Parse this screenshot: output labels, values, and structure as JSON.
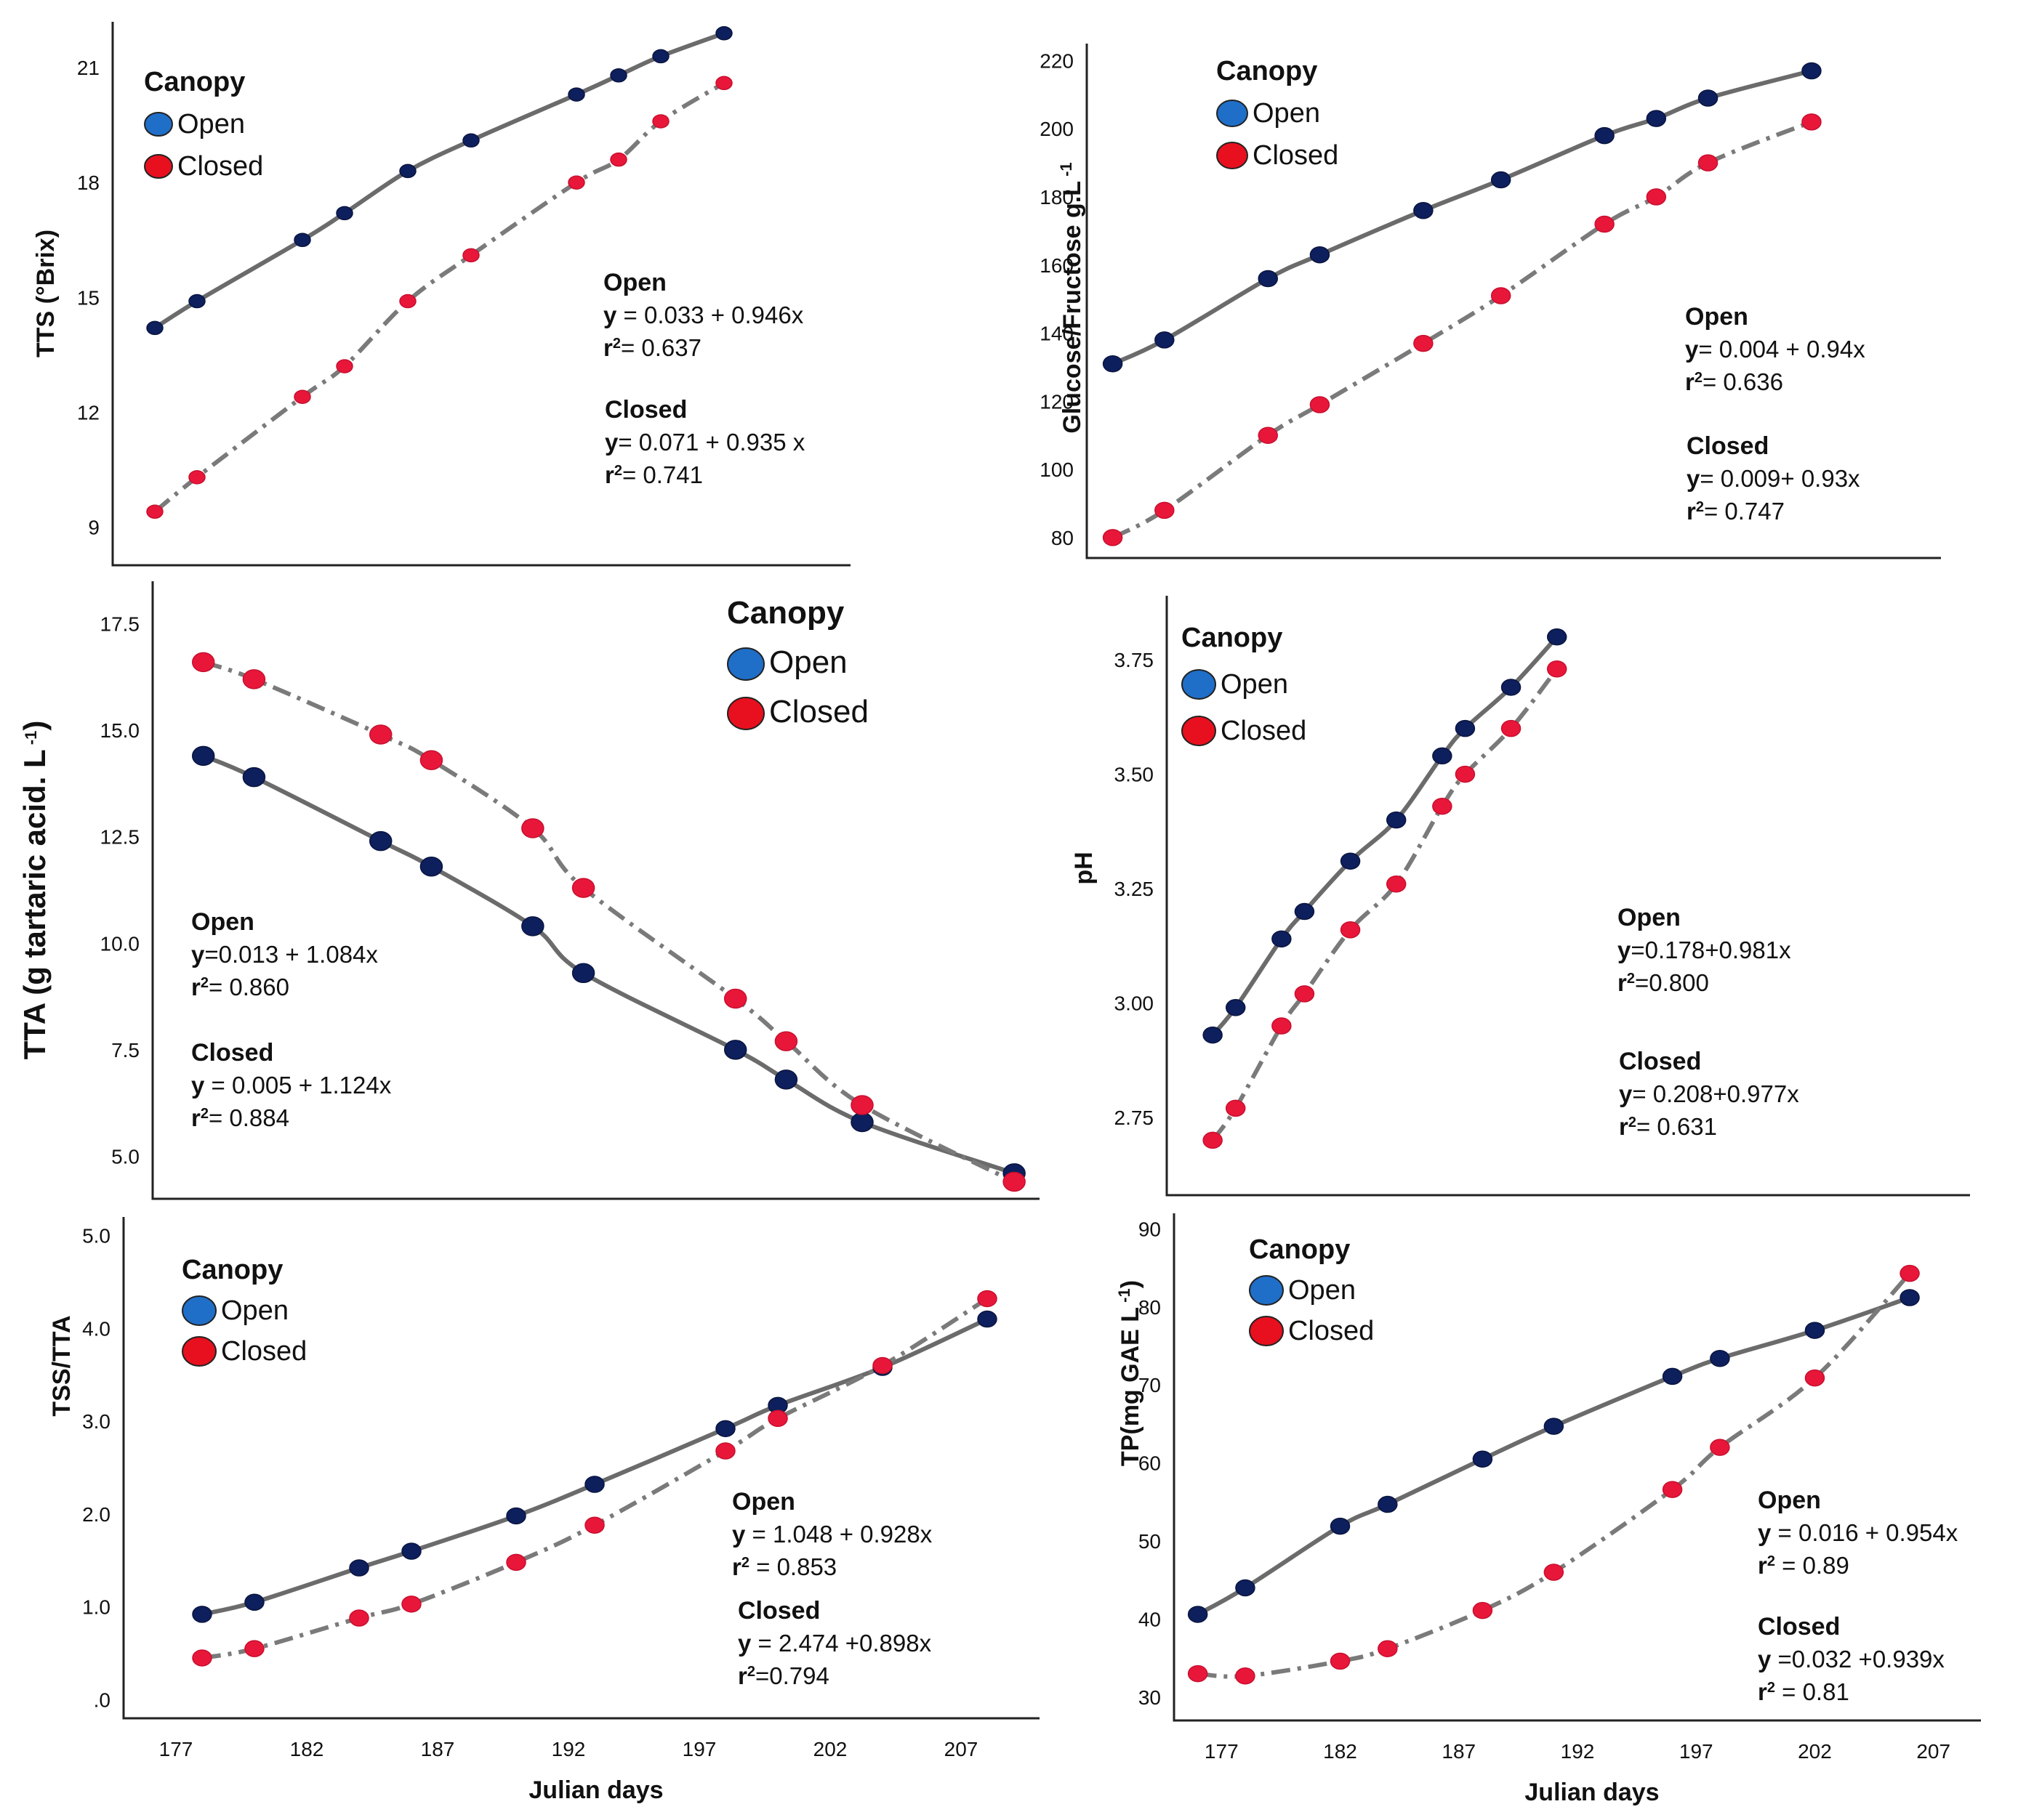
{
  "figure": {
    "legend_title": "Canopy",
    "series_names": [
      "Open",
      "Closed"
    ],
    "colors": {
      "open": "#0d1f5c",
      "closed": "#e8173a",
      "legend_open": "#1f6fc9",
      "legend_closed": "#e8101e",
      "open_line": "#6b6b6b",
      "closed_line": "#7a7a7a"
    },
    "xlabel": "Julian days",
    "x_ticks": [
      "177",
      "182",
      "187",
      "192",
      "197",
      "202",
      "207"
    ]
  },
  "chart_data": [
    {
      "id": "tss",
      "type": "line",
      "ylabel": "TTS (°Brix)",
      "y_ticks": [
        "9",
        "12",
        "15",
        "18",
        "21"
      ],
      "ylim": [
        8,
        22.2
      ],
      "xlim": [
        175,
        210
      ],
      "series": [
        {
          "name": "Open",
          "x": [
            177,
            179,
            184,
            186,
            189,
            192,
            197,
            199,
            201,
            204
          ],
          "values": [
            14.2,
            14.9,
            16.5,
            17.2,
            18.3,
            19.1,
            20.3,
            20.8,
            21.3,
            21.9
          ]
        },
        {
          "name": "Closed",
          "x": [
            177,
            179,
            184,
            186,
            189,
            192,
            197,
            199,
            201,
            204
          ],
          "values": [
            9.4,
            10.3,
            12.4,
            13.2,
            14.9,
            16.1,
            18.0,
            18.6,
            19.6,
            20.6
          ]
        }
      ],
      "annotations": [
        {
          "title": "Open",
          "eq_bold": "y",
          "eq_rest": " = 0.033 + 0.946x",
          "r2_bold": "r",
          "r2_rest": "= 0.637"
        },
        {
          "title": "Closed",
          "eq_bold": "y",
          "eq_rest": "= 0.071 + 0.935 x",
          "r2_bold": "r",
          "r2_rest": "= 0.741"
        }
      ]
    },
    {
      "id": "glucose",
      "type": "line",
      "ylabel": "Glucose/Fructose g.L",
      "y_ticks": [
        "80",
        "100",
        "120",
        "140",
        "160",
        "180",
        "200",
        "220"
      ],
      "ylim": [
        74,
        225
      ],
      "xlim": [
        175,
        208
      ],
      "series": [
        {
          "name": "Open",
          "x": [
            176,
            178,
            182,
            184,
            188,
            191,
            195,
            197,
            199,
            203
          ],
          "values": [
            131,
            138,
            156,
            163,
            176,
            185,
            198,
            203,
            209,
            217
          ]
        },
        {
          "name": "Closed",
          "x": [
            176,
            178,
            182,
            184,
            188,
            191,
            195,
            197,
            199,
            203
          ],
          "values": [
            80,
            88,
            110,
            119,
            137,
            151,
            172,
            180,
            190,
            202
          ]
        }
      ],
      "annotations": [
        {
          "title": "Open",
          "eq_bold": "y",
          "eq_rest": "= 0.004  + 0.94x",
          "r2_bold": "r",
          "r2_rest": "= 0.636"
        },
        {
          "title": "Closed",
          "eq_bold": "y",
          "eq_rest": "= 0.009+ 0.93x",
          "r2_bold": "r",
          "r2_rest": "= 0.747"
        }
      ]
    },
    {
      "id": "tta",
      "type": "line",
      "ylabel": "TTA (g tartaric acid. L",
      "y_ticks": [
        "5.0",
        "7.5",
        "10.0",
        "12.5",
        "15.0",
        "17.5"
      ],
      "ylim": [
        4.0,
        18.5
      ],
      "xlim": [
        175,
        210
      ],
      "series": [
        {
          "name": "Open",
          "x": [
            177,
            179,
            184,
            186,
            190,
            192,
            198,
            200,
            203,
            209
          ],
          "values": [
            14.4,
            13.9,
            12.4,
            11.8,
            10.4,
            9.3,
            7.5,
            6.8,
            5.8,
            4.6
          ]
        },
        {
          "name": "Closed",
          "x": [
            177,
            179,
            184,
            186,
            190,
            192,
            198,
            200,
            203,
            209
          ],
          "values": [
            16.6,
            16.2,
            14.9,
            14.3,
            12.7,
            11.3,
            8.7,
            7.7,
            6.2,
            4.4
          ]
        }
      ],
      "annotations": [
        {
          "title": "Open",
          "eq_bold": "y",
          "eq_rest": "=0.013 + 1.084x",
          "r2_bold": "r",
          "r2_rest": "= 0.860"
        },
        {
          "title": "Closed",
          "eq_bold": "y",
          "eq_rest": " = 0.005 + 1.124x",
          "r2_bold": "r",
          "r2_rest": "= 0.884"
        }
      ]
    },
    {
      "id": "ph",
      "type": "line",
      "ylabel": "pH",
      "y_ticks": [
        "2.75",
        "3.00",
        "3.25",
        "3.50",
        "3.75"
      ],
      "ylim": [
        2.58,
        3.89
      ],
      "xlim": [
        175,
        210
      ],
      "series": [
        {
          "name": "Open",
          "x": [
            177,
            178,
            180,
            181,
            183,
            185,
            187,
            188,
            190,
            192
          ],
          "values": [
            2.93,
            2.99,
            3.14,
            3.2,
            3.31,
            3.4,
            3.54,
            3.6,
            3.69,
            3.8
          ]
        },
        {
          "name": "Closed",
          "x": [
            177,
            178,
            180,
            181,
            183,
            185,
            187,
            188,
            190,
            192
          ],
          "values": [
            2.7,
            2.77,
            2.95,
            3.02,
            3.16,
            3.26,
            3.43,
            3.5,
            3.6,
            3.73
          ]
        }
      ],
      "annotations": [
        {
          "title": "Open",
          "eq_bold": "y",
          "eq_rest": "=0.178+0.981x",
          "r2_bold": "r",
          "r2_rest": "=0.800"
        },
        {
          "title": "Closed",
          "eq_bold": "y",
          "eq_rest": "= 0.208+0.977x",
          "r2_bold": "r",
          "r2_rest": "= 0.631"
        }
      ]
    },
    {
      "id": "tss_tta",
      "type": "line",
      "ylabel": "TSS/TTA",
      "y_ticks": [
        ".0",
        "1.0",
        "2.0",
        "3.0",
        "4.0",
        "5.0"
      ],
      "ylim": [
        -0.2,
        5.2
      ],
      "xlim": [
        175,
        210
      ],
      "series": [
        {
          "name": "Open",
          "x": [
            178,
            180,
            184,
            186,
            190,
            193,
            198,
            200,
            204,
            208
          ],
          "values": [
            0.92,
            1.05,
            1.42,
            1.6,
            1.98,
            2.32,
            2.92,
            3.17,
            3.58,
            4.1
          ]
        },
        {
          "name": "Closed",
          "x": [
            178,
            180,
            184,
            186,
            190,
            193,
            198,
            200,
            204,
            208
          ],
          "values": [
            0.45,
            0.55,
            0.88,
            1.03,
            1.48,
            1.88,
            2.68,
            3.03,
            3.6,
            4.32
          ]
        }
      ],
      "annotations": [
        {
          "title": "Open",
          "eq_bold": "y",
          "eq_rest": " = 1.048 + 0.928x",
          "r2_bold": "r",
          "r2_rest": " = 0.853"
        },
        {
          "title": "Closed",
          "eq_bold": "y",
          "eq_rest": " = 2.474 +0.898x",
          "r2_bold": "r",
          "r2_rest": "=0.794"
        }
      ]
    },
    {
      "id": "tp",
      "type": "line",
      "ylabel": "TP(mg GAE L",
      "y_ticks": [
        "30",
        "40",
        "50",
        "60",
        "70",
        "80",
        "90"
      ],
      "ylim": [
        27,
        92
      ],
      "xlim": [
        175,
        209
      ],
      "series": [
        {
          "name": "Open",
          "x": [
            176,
            178,
            182,
            184,
            188,
            191,
            196,
            198,
            202,
            206
          ],
          "values": [
            40.6,
            44.0,
            51.9,
            54.7,
            60.5,
            64.7,
            71.1,
            73.4,
            77.0,
            81.2
          ]
        },
        {
          "name": "Closed",
          "x": [
            176,
            178,
            182,
            184,
            188,
            191,
            196,
            198,
            202,
            206
          ],
          "values": [
            33.0,
            32.7,
            34.6,
            36.2,
            41.1,
            46.0,
            56.6,
            62.0,
            70.9,
            84.3
          ]
        }
      ],
      "annotations": [
        {
          "title": "Open",
          "eq_bold": "y",
          "eq_rest": " = 0.016 + 0.954x",
          "r2_bold": "r",
          "r2_rest": " = 0.89"
        },
        {
          "title": "Closed",
          "eq_bold": "y",
          "eq_rest": " =0.032 +0.939x",
          "r2_bold": "r",
          "r2_rest": " = 0.81"
        }
      ]
    }
  ]
}
